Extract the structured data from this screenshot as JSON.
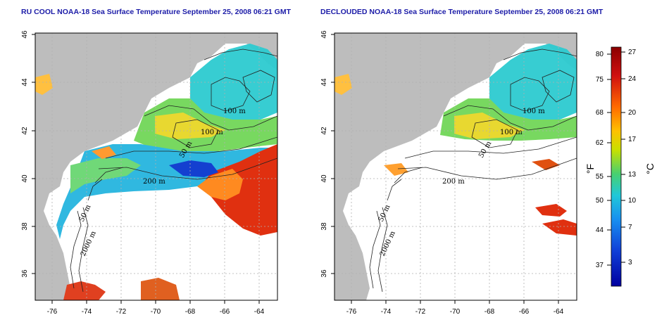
{
  "panels": [
    {
      "title": "RU COOL NOAA-18 Sea Surface Temperature September 25, 2008 06:21 GMT",
      "x_ticks": [
        "-76",
        "-74",
        "-72",
        "-70",
        "-68",
        "-66",
        "-64"
      ],
      "y_ticks": [
        "36",
        "38",
        "40",
        "42",
        "44",
        "46"
      ],
      "contour_labels": [
        "100 m",
        "100 m",
        "50 m",
        "200 m",
        "50 m",
        "2000 m"
      ]
    },
    {
      "title": "DECLOUDED NOAA-18 Sea Surface Temperature September 25, 2008 06:21 GMT",
      "x_ticks": [
        "-76",
        "-74",
        "-72",
        "-70",
        "-68",
        "-66",
        "-64"
      ],
      "y_ticks": [
        "36",
        "38",
        "40",
        "42",
        "44",
        "46"
      ],
      "contour_labels": [
        "100 m",
        "100 m",
        "50 m",
        "200 m",
        "50 m",
        "2000 m"
      ]
    }
  ],
  "colorbar": {
    "fahrenheit_ticks": [
      "80",
      "75",
      "68",
      "62",
      "55",
      "50",
      "44",
      "37"
    ],
    "celsius_ticks": [
      "27",
      "24",
      "20",
      "17",
      "13",
      "10",
      "7",
      "3"
    ],
    "fahrenheit_unit": "°F",
    "celsius_unit": "°C",
    "colors": [
      "#8b0000",
      "#d01010",
      "#ff6a00",
      "#ffc000",
      "#c8e000",
      "#48d070",
      "#20c8d8",
      "#1890f0",
      "#1040d8",
      "#0000a0"
    ]
  },
  "colors": {
    "land": "#bdbdbd",
    "title": "#1c1ca8",
    "grid": "#b0b0b0"
  }
}
